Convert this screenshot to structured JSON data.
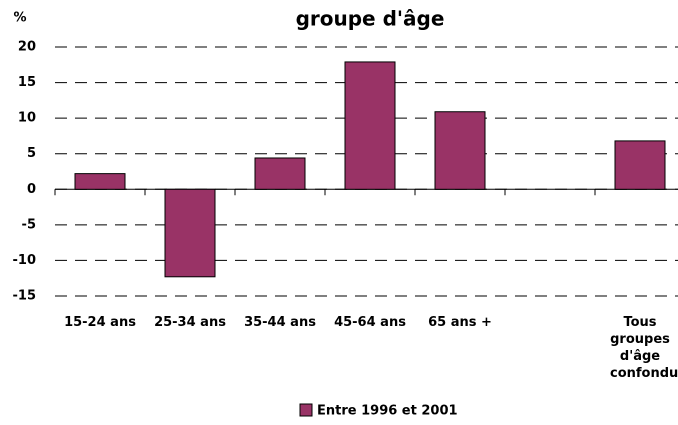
{
  "chart_data": {
    "type": "bar",
    "title": "groupe d'âge",
    "y_label": "%",
    "categories": [
      "15-24 ans",
      "25-34 ans",
      "35-44 ans",
      "45-64 ans",
      "65 ans +",
      null,
      "Tous groupes d'âge confondus"
    ],
    "series": [
      {
        "name": "Entre 1996 et 2001",
        "color": "#993366",
        "values": [
          2.2,
          -12.3,
          4.4,
          17.9,
          10.9,
          null,
          6.8
        ]
      }
    ],
    "ylim": [
      -15,
      20
    ],
    "yticks": [
      -15,
      -10,
      -5,
      0,
      5,
      10,
      15,
      20
    ],
    "grid": true
  }
}
